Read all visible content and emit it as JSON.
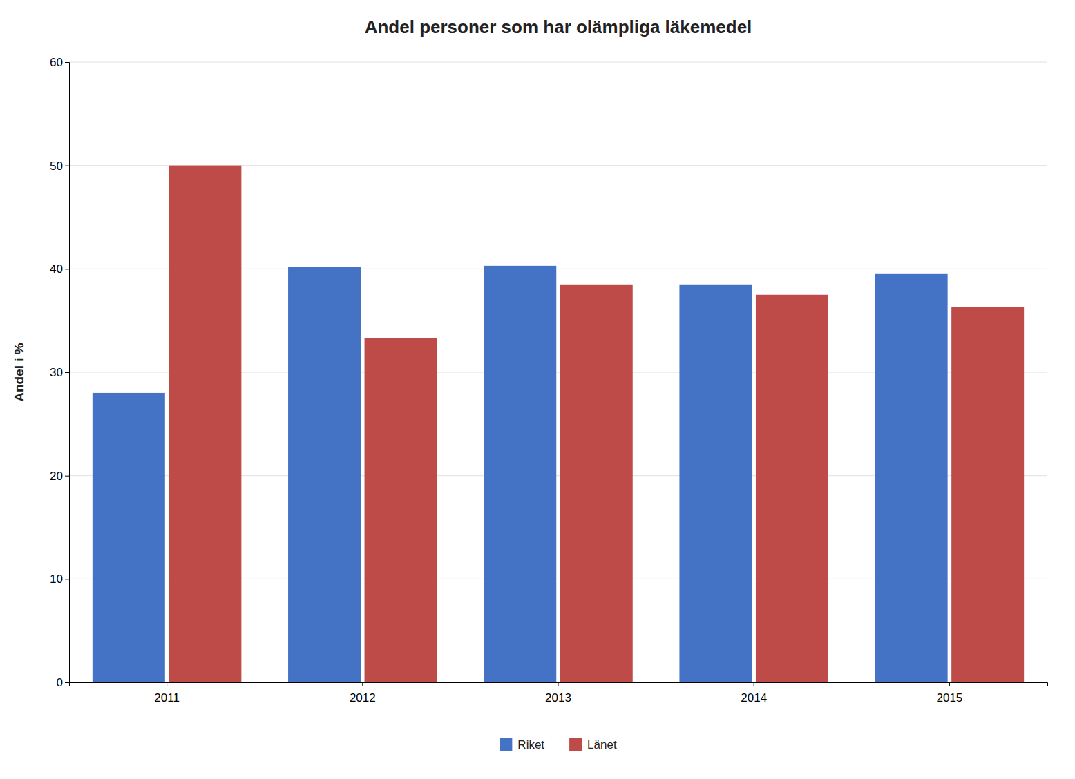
{
  "chart_data": {
    "type": "bar",
    "title": "Andel personer som har olämpliga läkemedel",
    "ylabel": "Andel i %",
    "categories": [
      "2011",
      "2012",
      "2013",
      "2014",
      "2015"
    ],
    "series": [
      {
        "name": "Riket",
        "color": "#4472C4",
        "values": [
          28,
          40.2,
          40.3,
          38.5,
          39.5
        ]
      },
      {
        "name": "Länet",
        "color": "#BE4B48",
        "values": [
          50,
          33.3,
          38.5,
          37.5,
          36.3
        ]
      }
    ],
    "ylim": [
      0,
      60
    ],
    "yticks": [
      0,
      10,
      20,
      30,
      40,
      50,
      60
    ],
    "grid": true,
    "legend": "bottom"
  }
}
